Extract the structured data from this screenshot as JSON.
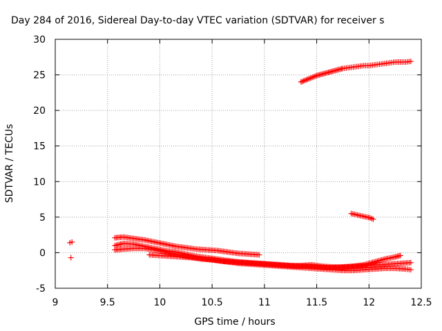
{
  "chart_data": {
    "type": "scatter",
    "title": "Day 284 of 2016, Sidereal Day-to-day VTEC variation (SDTVAR) for receiver s",
    "xlabel": "GPS time / hours",
    "ylabel": "SDTVAR / TECUs",
    "xlim": [
      9,
      12.5
    ],
    "ylim": [
      -5,
      30
    ],
    "x_ticks": [
      "9",
      "9.5",
      "10",
      "10.5",
      "11",
      "11.5",
      "12",
      "12.5"
    ],
    "y_ticks": [
      "-5",
      "0",
      "5",
      "10",
      "15",
      "20",
      "25",
      "30"
    ],
    "grid": true,
    "marker": "+",
    "color": "#ff0000",
    "series": [
      {
        "name": "isolated-near-9.15",
        "points": [
          [
            9.14,
            1.4
          ],
          [
            9.16,
            1.5
          ],
          [
            9.15,
            -0.7
          ]
        ]
      },
      {
        "name": "upper-arc",
        "x": [
          11.35,
          11.4,
          11.45,
          11.5,
          11.55,
          11.6,
          11.65,
          11.7,
          11.75,
          11.8,
          11.85,
          11.9,
          11.95,
          12.0,
          12.05,
          12.1,
          12.15,
          12.2,
          12.25,
          12.3,
          12.35,
          12.4
        ],
        "y": [
          24.0,
          24.3,
          24.6,
          24.9,
          25.1,
          25.3,
          25.5,
          25.7,
          25.9,
          26.0,
          26.1,
          26.2,
          26.3,
          26.3,
          26.4,
          26.5,
          26.6,
          26.7,
          26.8,
          26.8,
          26.8,
          26.9
        ]
      },
      {
        "name": "short-segment-near-5",
        "x": [
          11.83,
          11.86,
          11.89,
          11.92,
          11.95,
          11.98,
          12.01,
          12.04
        ],
        "y": [
          5.5,
          5.4,
          5.3,
          5.2,
          5.1,
          5.0,
          4.9,
          4.7
        ]
      },
      {
        "name": "band-a",
        "x": [
          9.57,
          9.65,
          9.75,
          9.85,
          9.95,
          10.05,
          10.15,
          10.25,
          10.35,
          10.45,
          10.55,
          10.65,
          10.75,
          10.85,
          10.95
        ],
        "y": [
          2.1,
          2.2,
          2.0,
          1.8,
          1.5,
          1.2,
          0.9,
          0.7,
          0.5,
          0.4,
          0.3,
          0.1,
          -0.1,
          -0.2,
          -0.3
        ]
      },
      {
        "name": "band-b",
        "x": [
          9.57,
          9.65,
          9.75,
          9.85,
          9.95,
          10.05,
          10.15,
          10.25,
          10.35,
          10.45,
          10.55,
          10.65,
          10.75,
          10.85,
          10.95,
          11.05,
          11.15,
          11.25,
          11.35,
          11.45,
          11.55,
          11.65,
          11.75,
          11.85,
          11.95,
          12.05,
          12.15,
          12.25,
          12.3
        ],
        "y": [
          1.0,
          1.3,
          1.2,
          0.9,
          0.6,
          0.3,
          0.1,
          -0.2,
          -0.5,
          -0.7,
          -0.9,
          -1.1,
          -1.3,
          -1.4,
          -1.5,
          -1.6,
          -1.7,
          -1.8,
          -1.8,
          -1.7,
          -1.9,
          -2.0,
          -2.0,
          -1.9,
          -1.7,
          -1.3,
          -0.9,
          -0.6,
          -0.4
        ]
      },
      {
        "name": "band-c",
        "x": [
          9.57,
          9.65,
          9.75,
          9.85,
          9.95,
          10.05,
          10.15,
          10.25,
          10.35,
          10.45,
          10.55,
          10.65,
          10.75,
          10.85,
          10.95,
          11.05,
          11.15,
          11.25,
          11.35,
          11.45,
          11.55,
          11.65,
          11.75,
          11.85,
          11.95,
          12.05,
          12.15,
          12.25,
          12.35,
          12.4
        ],
        "y": [
          0.4,
          0.5,
          0.6,
          0.6,
          0.4,
          0.1,
          -0.2,
          -0.5,
          -0.7,
          -0.9,
          -1.1,
          -1.3,
          -1.5,
          -1.6,
          -1.7,
          -1.8,
          -1.9,
          -2.0,
          -2.1,
          -2.2,
          -2.3,
          -2.4,
          -2.5,
          -2.5,
          -2.4,
          -2.3,
          -2.2,
          -2.2,
          -2.3,
          -2.4
        ]
      },
      {
        "name": "band-d",
        "x": [
          9.9,
          10.0,
          10.1,
          10.2,
          10.3,
          10.4,
          10.5,
          10.6,
          10.7,
          10.8,
          10.9,
          11.0,
          11.1,
          11.2,
          11.3,
          11.4,
          11.5,
          11.6,
          11.7,
          11.8,
          11.9,
          12.0,
          12.1,
          12.2,
          12.3,
          12.4
        ],
        "y": [
          -0.3,
          -0.4,
          -0.5,
          -0.6,
          -0.7,
          -0.9,
          -1.0,
          -1.2,
          -1.3,
          -1.4,
          -1.5,
          -1.6,
          -1.7,
          -1.8,
          -1.9,
          -1.9,
          -2.0,
          -2.1,
          -2.1,
          -2.0,
          -1.9,
          -1.8,
          -1.7,
          -1.6,
          -1.5,
          -1.4
        ]
      }
    ]
  }
}
